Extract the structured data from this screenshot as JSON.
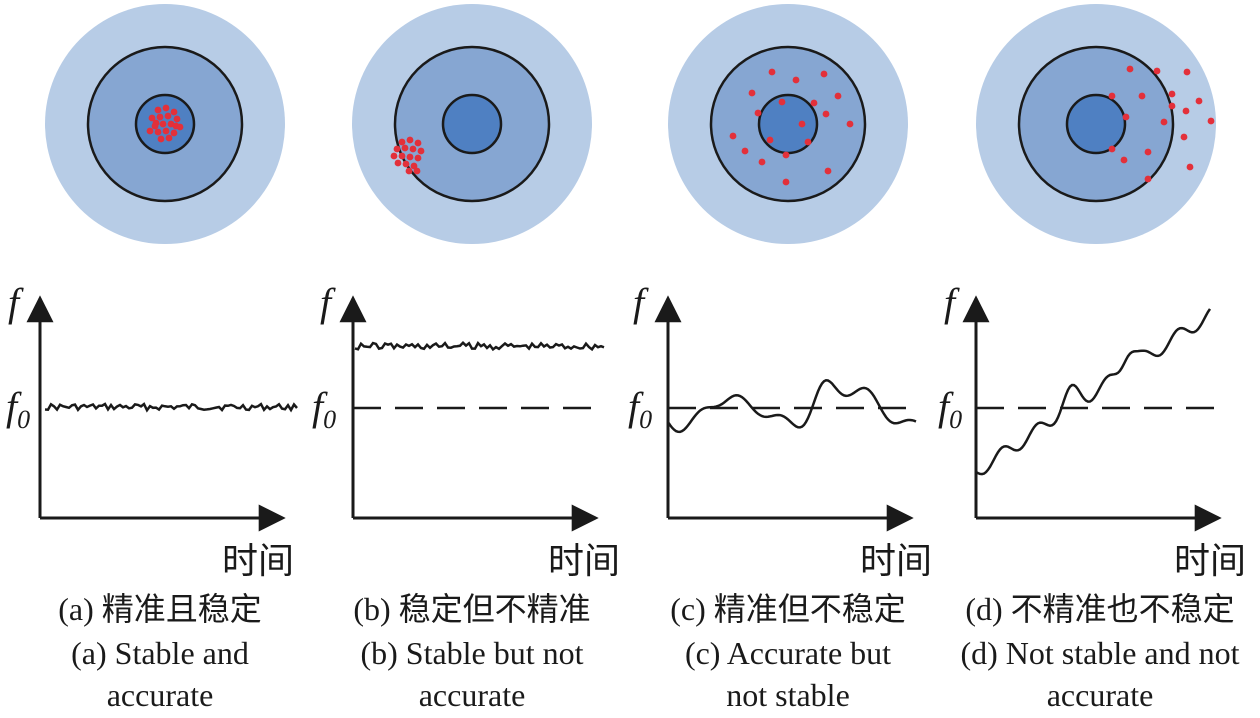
{
  "axis": {
    "y_label": "f",
    "y_ref_base": "f",
    "y_ref_sub": "0",
    "x_label": "时间"
  },
  "colors": {
    "ring_outer": "#b7cce6",
    "ring_middle": "#86a6d2",
    "ring_inner": "#4f80c2",
    "stroke": "#1a1a1a",
    "hit": "#e3303a"
  },
  "panels": [
    {
      "id": "a",
      "caption_cn": "(a) 精准且稳定",
      "caption_en_1": "(a) Stable and",
      "caption_en_2": "accurate",
      "trend": "flat-near-ref",
      "hits_desc": "tight-center"
    },
    {
      "id": "b",
      "caption_cn": "(b) 稳定但不精准",
      "caption_en_1": "(b) Stable but not",
      "caption_en_2": "accurate",
      "trend": "flat-offset",
      "hits_desc": "tight-offcenter"
    },
    {
      "id": "c",
      "caption_cn": "(c) 精准但不稳定",
      "caption_en_1": "(c) Accurate but",
      "caption_en_2": "not stable",
      "trend": "oscillating-around-ref",
      "hits_desc": "scattered-center"
    },
    {
      "id": "d",
      "caption_cn": "(d) 不精准也不稳定",
      "caption_en_1": "(d) Not stable and not",
      "caption_en_2": "accurate",
      "trend": "drifting-upward",
      "hits_desc": "scattered-offcenter"
    }
  ]
}
